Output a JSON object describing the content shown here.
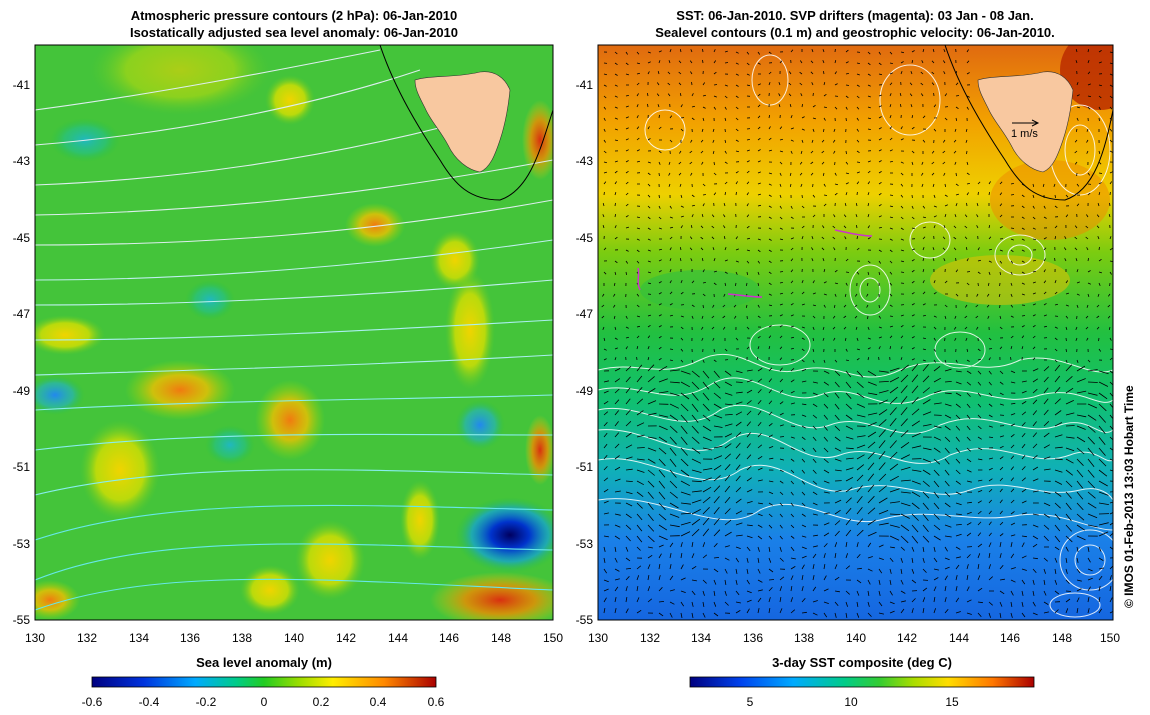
{
  "left_panel": {
    "title_line1": "Atmospheric pressure contours (2 hPa): 06-Jan-2010",
    "title_line2": "Isostatically adjusted sea level anomaly: 06-Jan-2010",
    "x_ticks": [
      "130",
      "132",
      "134",
      "136",
      "138",
      "140",
      "142",
      "144",
      "146",
      "148",
      "150"
    ],
    "y_ticks": [
      "-41",
      "-43",
      "-45",
      "-47",
      "-49",
      "-51",
      "-53",
      "-55"
    ],
    "colorbar_label": "Sea level anomaly (m)",
    "colorbar_ticks": [
      "-0.6",
      "-0.4",
      "-0.2",
      "0",
      "0.2",
      "0.4",
      "0.6"
    ]
  },
  "right_panel": {
    "title_line1": "SST: 06-Jan-2010. SVP drifters (magenta): 03 Jan - 08 Jan.",
    "title_line2": "Sealevel contours (0.1 m) and geostrophic velocity: 06-Jan-2010.",
    "x_ticks": [
      "130",
      "132",
      "134",
      "136",
      "138",
      "140",
      "142",
      "144",
      "146",
      "148",
      "150"
    ],
    "y_ticks": [
      "-41",
      "-43",
      "-45",
      "-47",
      "-49",
      "-51",
      "-53",
      "-55"
    ],
    "velocity_scale_label": "1 m/s",
    "colorbar_label": "3-day SST composite (deg C)",
    "colorbar_ticks": [
      "5",
      "10",
      "15"
    ]
  },
  "credit": "© IMOS 01-Feb-2013 13:03 Hobart Time",
  "colors": {
    "land": "#f8c8a0",
    "drifter": "#cc33cc"
  }
}
